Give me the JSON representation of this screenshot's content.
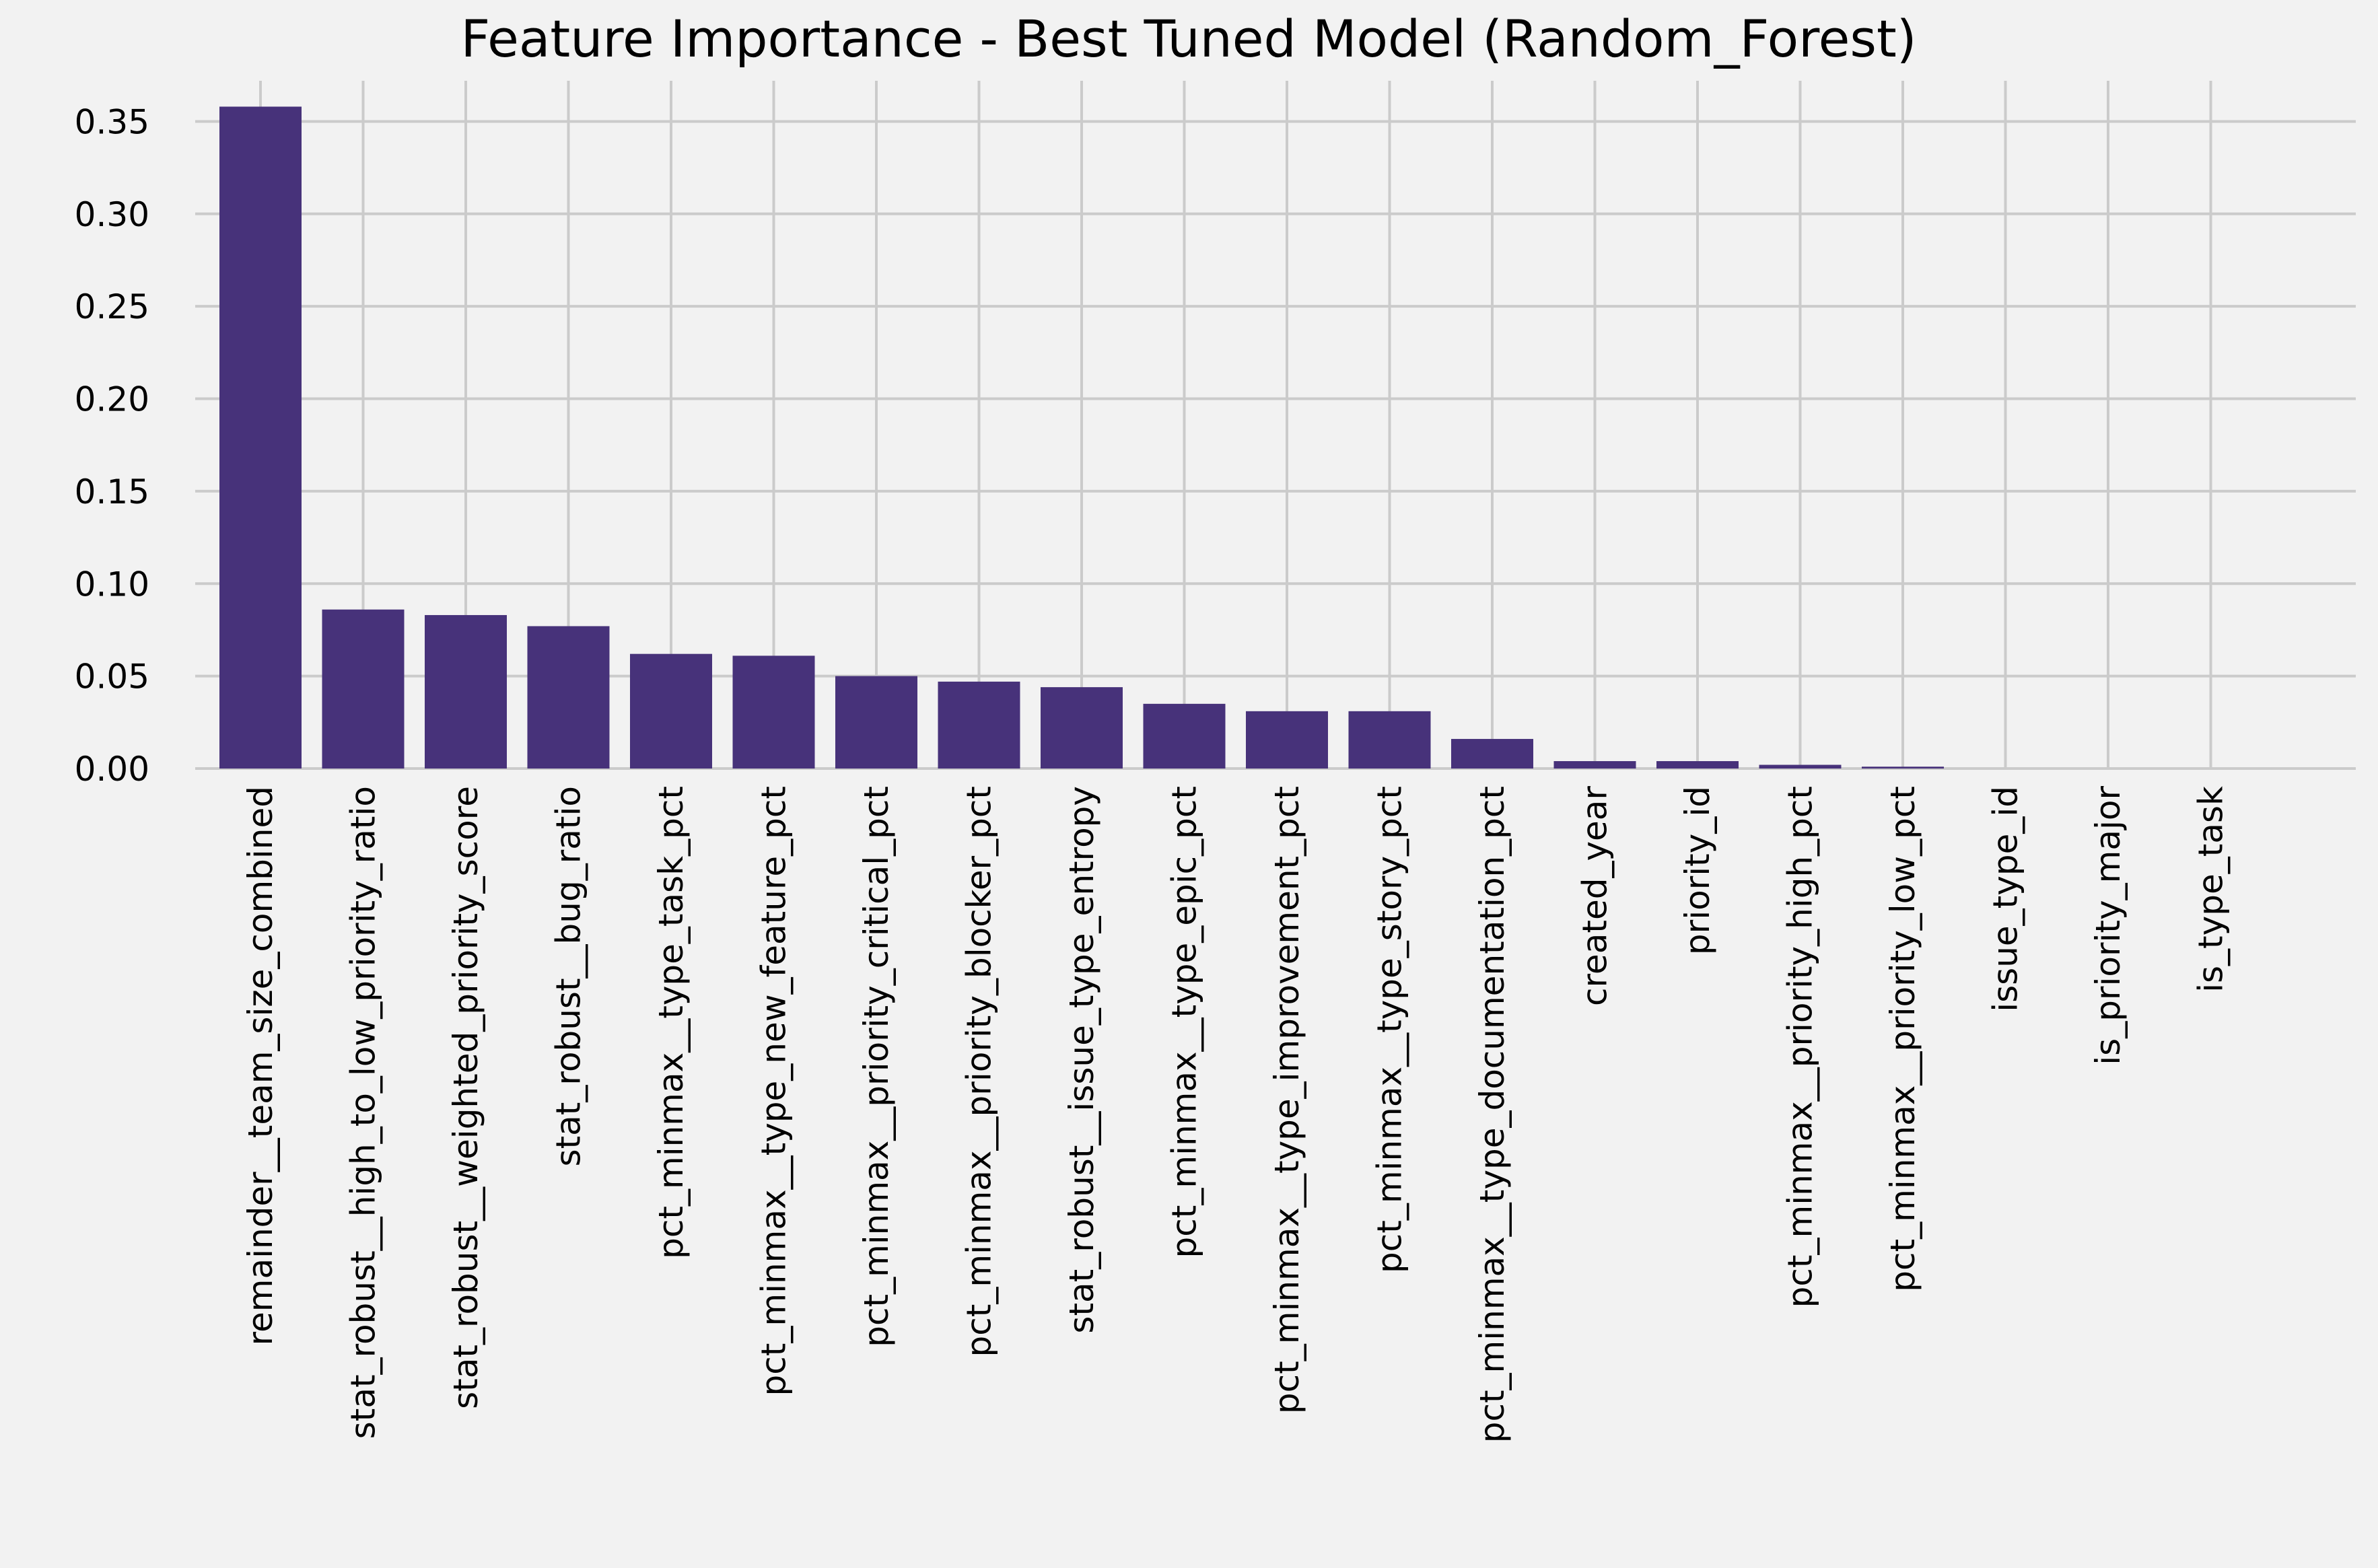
{
  "chart_data": {
    "type": "bar",
    "title": "Feature Importance - Best Tuned Model (Random_Forest)",
    "xlabel": "",
    "ylabel": "",
    "categories": [
      "remainder__team_size_combined",
      "stat_robust__high_to_low_priority_ratio",
      "stat_robust__weighted_priority_score",
      "stat_robust__bug_ratio",
      "pct_minmax__type_task_pct",
      "pct_minmax__type_new_feature_pct",
      "pct_minmax__priority_critical_pct",
      "pct_minmax__priority_blocker_pct",
      "stat_robust__issue_type_entropy",
      "pct_minmax__type_epic_pct",
      "pct_minmax__type_improvement_pct",
      "pct_minmax__type_story_pct",
      "pct_minmax__type_documentation_pct",
      "created_year",
      "priority_id",
      "pct_minmax__priority_high_pct",
      "pct_minmax__priority_low_pct",
      "issue_type_id",
      "is_priority_major",
      "is_type_task"
    ],
    "values": [
      0.358,
      0.086,
      0.083,
      0.077,
      0.062,
      0.061,
      0.05,
      0.047,
      0.044,
      0.035,
      0.031,
      0.031,
      0.016,
      0.004,
      0.004,
      0.002,
      0.001,
      0.0,
      0.0,
      0.0
    ],
    "ylim": [
      0,
      0.372
    ],
    "yticks": [
      "0.00",
      "0.05",
      "0.10",
      "0.15",
      "0.20",
      "0.25",
      "0.30",
      "0.35"
    ],
    "ytick_values": [
      0,
      0.05,
      0.1,
      0.15,
      0.2,
      0.25,
      0.3,
      0.35
    ],
    "grid": true,
    "bar_color": "#47327a",
    "background_color": "#f2f2f2",
    "grid_color": "#cbcbcb"
  }
}
